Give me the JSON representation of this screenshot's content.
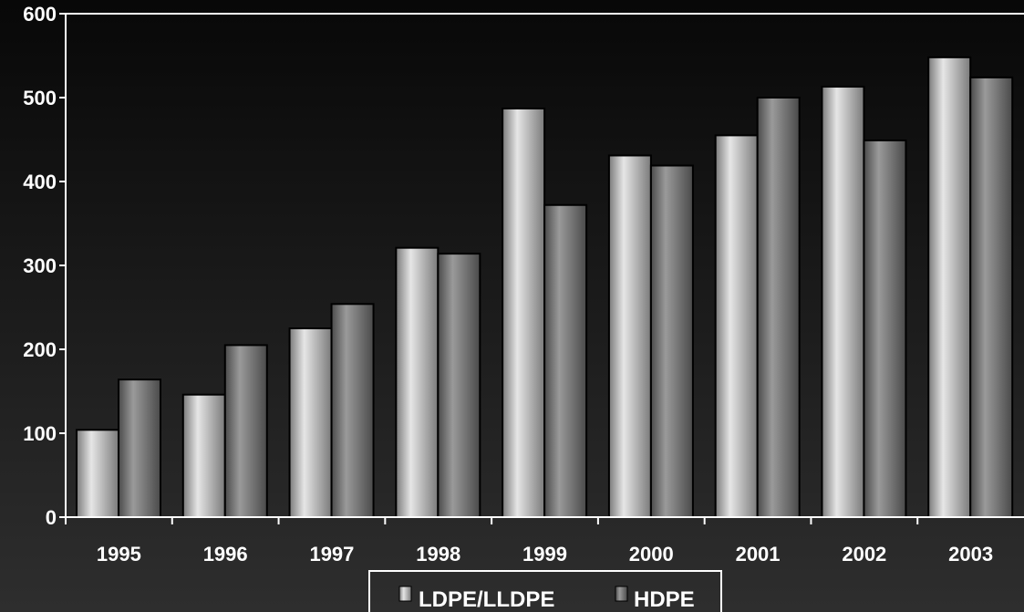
{
  "chart_data": {
    "type": "bar",
    "title": "",
    "xlabel": "",
    "ylabel": "",
    "categories": [
      "1995",
      "1996",
      "1997",
      "1998",
      "1999",
      "2000",
      "2001",
      "2002",
      "2003"
    ],
    "series": [
      {
        "name": "LDPE/LLDPE",
        "values": [
          104,
          146,
          225,
          321,
          487,
          431,
          455,
          513,
          548
        ]
      },
      {
        "name": "HDPE",
        "values": [
          164,
          205,
          254,
          314,
          372,
          419,
          500,
          449,
          524
        ]
      }
    ],
    "ylim": [
      0,
      600
    ],
    "yticks": [
      "0",
      "100",
      "200",
      "300",
      "400",
      "500",
      "600"
    ],
    "grid": false,
    "legend_position": "bottom-center",
    "colors": {
      "ldpe_light": "#e6e6e6",
      "ldpe_dark": "#7a7a7a",
      "hdpe_light": "#9a9a9a",
      "hdpe_dark": "#4a4a4a",
      "axis": "#ffffff",
      "bar_outline": "#000000"
    }
  }
}
